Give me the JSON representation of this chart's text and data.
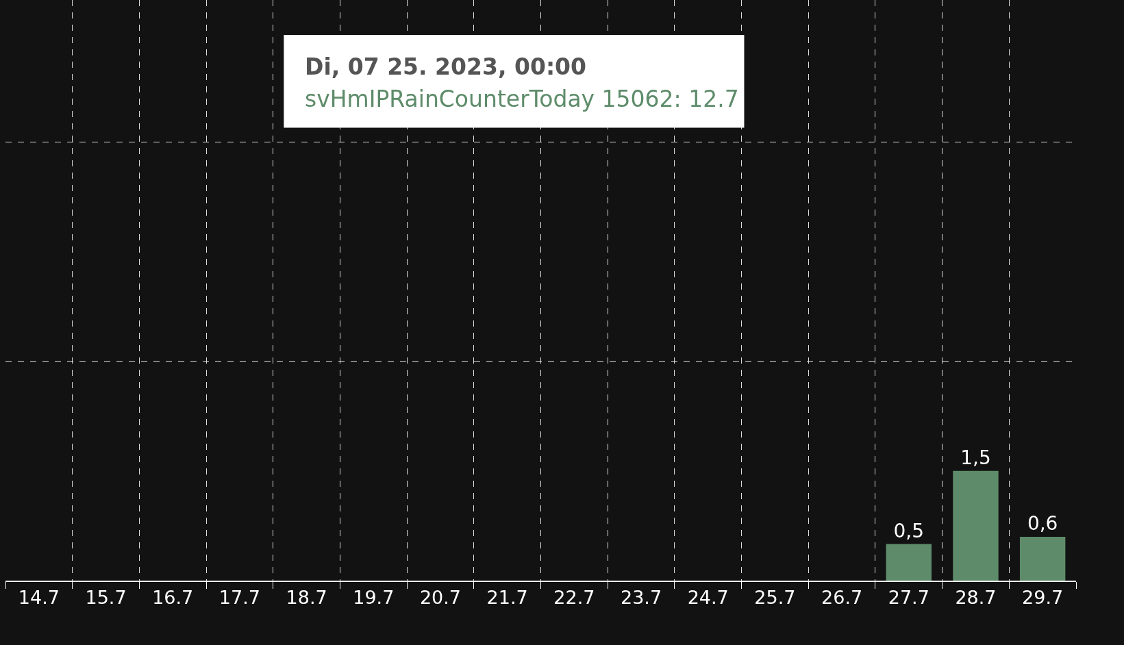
{
  "chart_data": {
    "type": "bar",
    "categories": [
      "14.7",
      "15.7",
      "16.7",
      "17.7",
      "18.7",
      "19.7",
      "20.7",
      "21.7",
      "22.7",
      "23.7",
      "24.7",
      "25.7",
      "26.7",
      "27.7",
      "28.7",
      "29.7"
    ],
    "values": [
      0,
      0,
      0,
      0,
      0,
      0,
      0,
      0,
      0,
      0,
      0,
      null,
      null,
      0.5,
      1.5,
      0.6
    ],
    "value_labels": [
      null,
      null,
      null,
      null,
      null,
      null,
      null,
      null,
      null,
      null,
      null,
      null,
      null,
      "0,5",
      "1,5",
      "0,6"
    ],
    "colors": [
      "#5e8c6a",
      "#5e8c6a",
      "#5e8c6a",
      "#5e8c6a",
      "#5e8c6a",
      "#5e8c6a",
      "#5e8c6a",
      "#5e8c6a",
      "#5e8c6a",
      "#5e8c6a",
      "#5e8c6a",
      "#6a9a78",
      "#5e8c6a",
      "#5e8c6a",
      "#5e8c6a",
      "#5e8c6a"
    ],
    "ylim": [
      0,
      7.94
    ],
    "yticks": [
      {
        "value": 0,
        "label": null
      },
      {
        "value": 3,
        "label": null
      },
      {
        "value": 6,
        "label": null
      }
    ],
    "tick_labels": "x",
    "grid": true,
    "annotations": [
      "Di, 07 25. 2023, 00:00",
      "svHmIPRainCounterToday 15062: 12.7"
    ]
  }
}
